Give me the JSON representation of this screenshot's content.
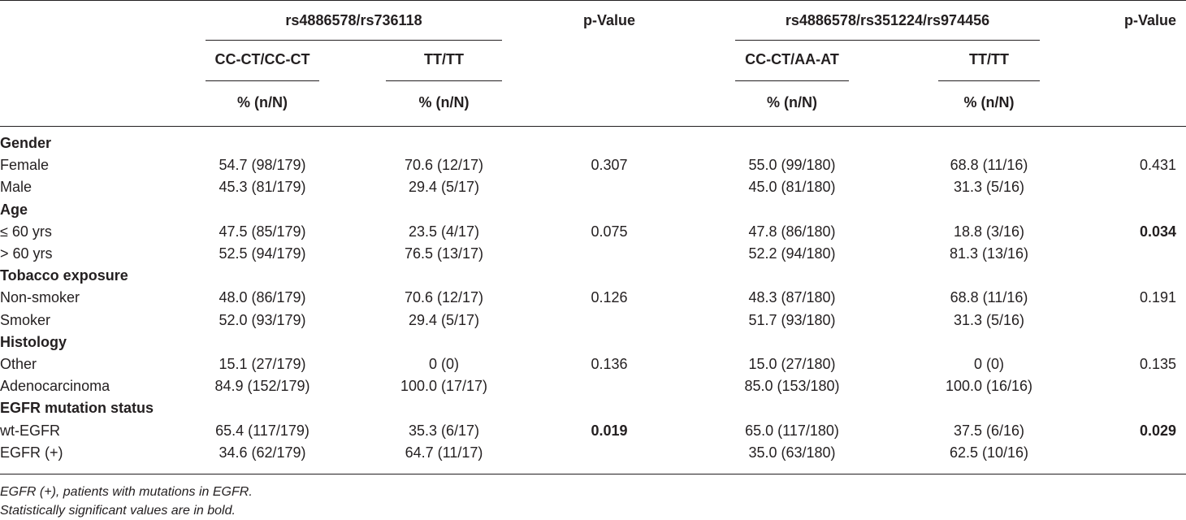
{
  "header": {
    "group1": "rs4886578/rs736118",
    "group2": "rs4886578/rs351224/rs974456",
    "pvalue": "p-Value",
    "g1_sub1": "CC-CT/CC-CT",
    "g1_sub2": "TT/TT",
    "g2_sub1": "CC-CT/AA-AT",
    "g2_sub2": "TT/TT",
    "unit": "% (n/N)"
  },
  "sections": [
    {
      "title": "Gender",
      "rows": [
        {
          "label": "Female",
          "c1": "54.7 (98/179)",
          "c2": "70.6 (12/17)",
          "p1": "0.307",
          "p1_bold": false,
          "c3": "55.0 (99/180)",
          "c4": "68.8 (11/16)",
          "p2": "0.431",
          "p2_bold": false
        },
        {
          "label": "Male",
          "c1": "45.3 (81/179)",
          "c2": "29.4 (5/17)",
          "p1": "",
          "p1_bold": false,
          "c3": "45.0 (81/180)",
          "c4": "31.3 (5/16)",
          "p2": "",
          "p2_bold": false
        }
      ]
    },
    {
      "title": "Age",
      "rows": [
        {
          "label": "≤ 60 yrs",
          "c1": "47.5 (85/179)",
          "c2": "23.5 (4/17)",
          "p1": "0.075",
          "p1_bold": false,
          "c3": "47.8 (86/180)",
          "c4": "18.8 (3/16)",
          "p2": "0.034",
          "p2_bold": true
        },
        {
          "label": "> 60 yrs",
          "c1": "52.5 (94/179)",
          "c2": "76.5 (13/17)",
          "p1": "",
          "p1_bold": false,
          "c3": "52.2 (94/180)",
          "c4": "81.3 (13/16)",
          "p2": "",
          "p2_bold": false
        }
      ]
    },
    {
      "title": "Tobacco exposure",
      "rows": [
        {
          "label": "Non-smoker",
          "c1": "48.0 (86/179)",
          "c2": "70.6 (12/17)",
          "p1": "0.126",
          "p1_bold": false,
          "c3": "48.3 (87/180)",
          "c4": "68.8 (11/16)",
          "p2": "0.191",
          "p2_bold": false
        },
        {
          "label": "Smoker",
          "c1": "52.0 (93/179)",
          "c2": "29.4 (5/17)",
          "p1": "",
          "p1_bold": false,
          "c3": "51.7 (93/180)",
          "c4": "31.3 (5/16)",
          "p2": "",
          "p2_bold": false
        }
      ]
    },
    {
      "title": "Histology",
      "rows": [
        {
          "label": "Other",
          "c1": "15.1 (27/179)",
          "c2": "0 (0)",
          "p1": "0.136",
          "p1_bold": false,
          "c3": "15.0 (27/180)",
          "c4": "0 (0)",
          "p2": "0.135",
          "p2_bold": false
        },
        {
          "label": "Adenocarcinoma",
          "c1": "84.9 (152/179)",
          "c2": "100.0 (17/17)",
          "p1": "",
          "p1_bold": false,
          "c3": "85.0 (153/180)",
          "c4": "100.0 (16/16)",
          "p2": "",
          "p2_bold": false
        }
      ]
    },
    {
      "title": "EGFR mutation status",
      "rows": [
        {
          "label": "wt-EGFR",
          "c1": "65.4 (117/179)",
          "c2": "35.3 (6/17)",
          "p1": "0.019",
          "p1_bold": true,
          "c3": "65.0 (117/180)",
          "c4": "37.5 (6/16)",
          "p2": "0.029",
          "p2_bold": true
        },
        {
          "label": "EGFR (+)",
          "c1": "34.6 (62/179)",
          "c2": "64.7 (11/17)",
          "p1": "",
          "p1_bold": false,
          "c3": "35.0 (63/180)",
          "c4": "62.5 (10/16)",
          "p2": "",
          "p2_bold": false
        }
      ]
    }
  ],
  "footnotes": [
    "EGFR (+), patients with mutations in EGFR.",
    "Statistically significant values are in bold."
  ]
}
